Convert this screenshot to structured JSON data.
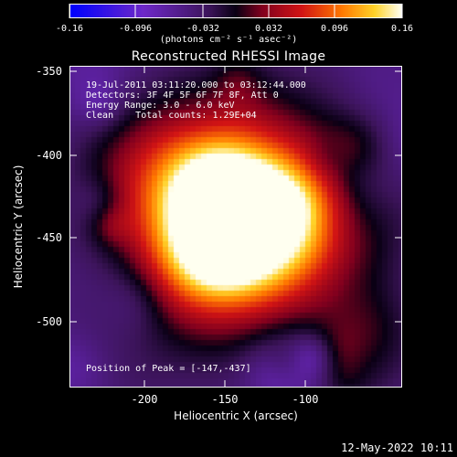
{
  "colorbar": {
    "ticks": [
      "-0.16",
      "-0.096",
      "-0.032",
      "0.032",
      "0.096",
      "0.16"
    ],
    "units": "(photons cm⁻² s⁻¹ asec⁻²)"
  },
  "title": "Reconstructed RHESSI Image",
  "info": {
    "time_range": "19-Jul-2011 03:11:20.000 to 03:12:44.000",
    "detectors": "Detectors: 3F 4F 5F 6F 7F 8F, Att 0",
    "energy": "Energy Range: 3.0 - 6.0 keV",
    "clean": "Clean    Total counts: 1.29E+04",
    "peak": "Position of Peak = [-147,-437]"
  },
  "axes": {
    "xlabel": "Heliocentric X (arcsec)",
    "ylabel": "Heliocentric Y (arcsec)",
    "xticks": [
      "-200",
      "-150",
      "-100"
    ],
    "yticks": [
      "-350",
      "-400",
      "-450",
      "-500"
    ]
  },
  "timestamp": "12-May-2022 10:11"
}
